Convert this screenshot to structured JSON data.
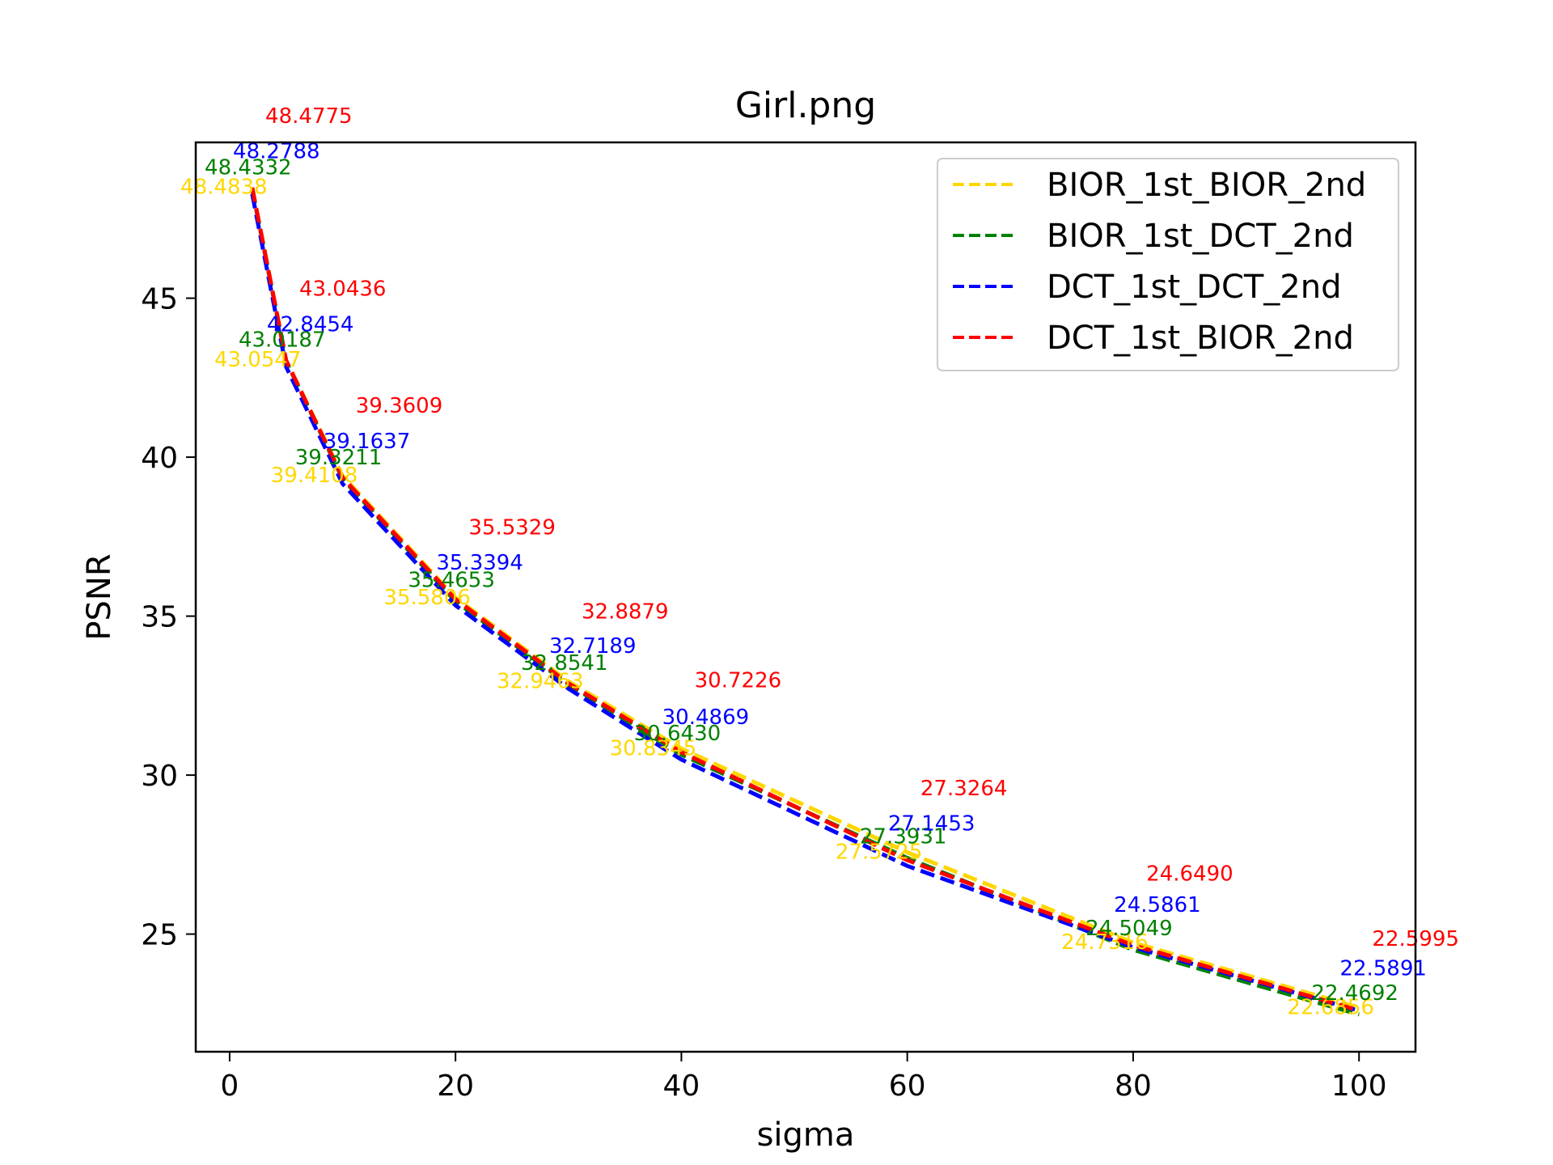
{
  "chart_data": {
    "type": "line",
    "title": "Girl.png",
    "xlabel": "sigma",
    "ylabel": "PSNR",
    "xlim": [
      -3,
      105
    ],
    "ylim": [
      21.3,
      49.9
    ],
    "xticks": [
      0,
      20,
      40,
      60,
      80,
      100
    ],
    "yticks": [
      25,
      30,
      35,
      40,
      45
    ],
    "grid": false,
    "legend_position": "top-right",
    "x": [
      2,
      5,
      10,
      20,
      30,
      40,
      60,
      80,
      100
    ],
    "series": [
      {
        "name": "BIOR_1st_BIOR_2nd",
        "color": "#FFD700",
        "values": [
          48.4838,
          43.0547,
          39.4108,
          35.5806,
          32.9463,
          30.8345,
          27.5725,
          24.7316,
          22.6856
        ],
        "labels": [
          "48.4838",
          "43.0547",
          "39.4108",
          "35.5806",
          "32.9463",
          "30.8345",
          "27.5725",
          "24.7316",
          "22.6856"
        ]
      },
      {
        "name": "BIOR_1st_DCT_2nd",
        "color": "#008000",
        "values": [
          48.4332,
          43.0187,
          39.3211,
          35.4653,
          32.8541,
          30.643,
          27.3931,
          24.5049,
          22.4692
        ],
        "labels": [
          "48.4332",
          "43.0187",
          "39.3211",
          "35.4653",
          "32.8541",
          "30.6430",
          "27.3931",
          "24.5049",
          "22.4692"
        ]
      },
      {
        "name": "DCT_1st_DCT_2nd",
        "color": "#0000FF",
        "values": [
          48.2788,
          42.8454,
          39.1637,
          35.3394,
          32.7189,
          30.4869,
          27.1453,
          24.5861,
          22.5891
        ],
        "labels": [
          "48.2788",
          "42.8454",
          "39.1637",
          "35.3394",
          "32.7189",
          "30.4869",
          "27.1453",
          "24.5861",
          "22.5891"
        ]
      },
      {
        "name": "DCT_1st_BIOR_2nd",
        "color": "#FF0000",
        "values": [
          48.4775,
          43.0436,
          39.3609,
          35.5329,
          32.8879,
          30.7226,
          27.3264,
          24.649,
          22.5995
        ],
        "labels": [
          "48.4775",
          "43.0436",
          "39.3609",
          "35.5329",
          "32.8879",
          "30.7226",
          "27.3264",
          "24.6490",
          "22.5995"
        ]
      }
    ]
  }
}
